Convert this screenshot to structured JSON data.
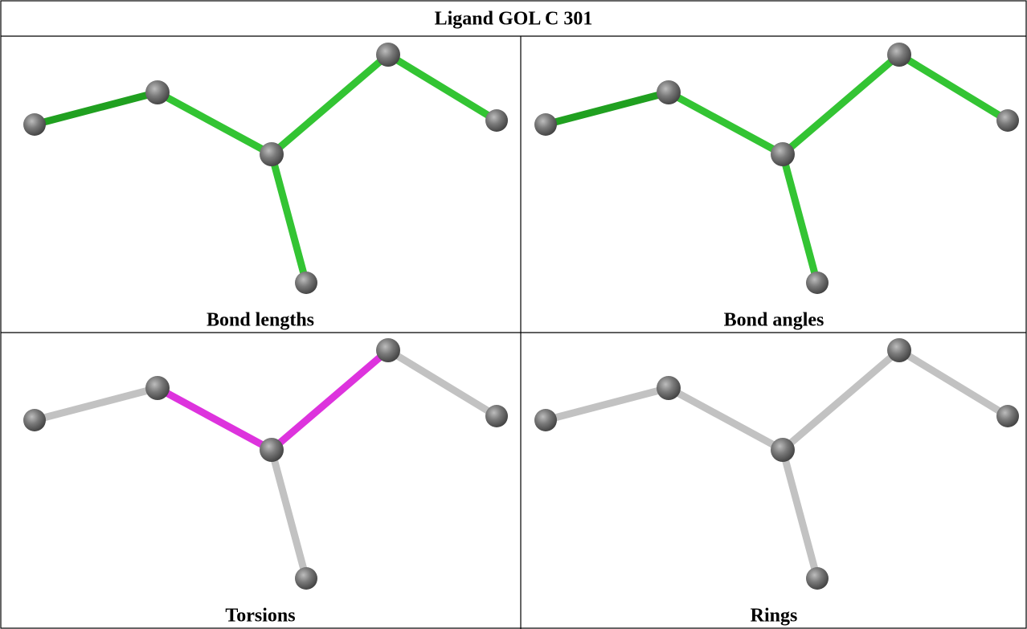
{
  "title": "Ligand GOL C 301",
  "panels": [
    {
      "caption": "Bond lengths"
    },
    {
      "caption": "Bond angles"
    },
    {
      "caption": "Torsions"
    },
    {
      "caption": "Rings"
    }
  ]
}
